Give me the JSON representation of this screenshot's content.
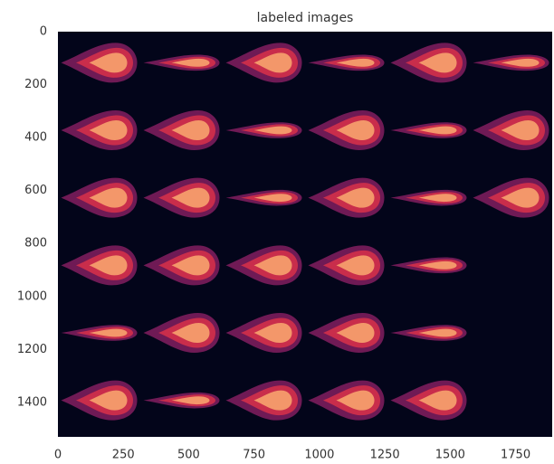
{
  "chart_data": {
    "type": "image",
    "title": "labeled images",
    "xlim": [
      0,
      1890
    ],
    "ylim": [
      1530,
      0
    ],
    "xticks": [
      0,
      250,
      500,
      750,
      1000,
      1250,
      1500,
      1750
    ],
    "yticks": [
      0,
      200,
      400,
      600,
      800,
      1000,
      1200,
      1400
    ],
    "grid": false
  }
}
